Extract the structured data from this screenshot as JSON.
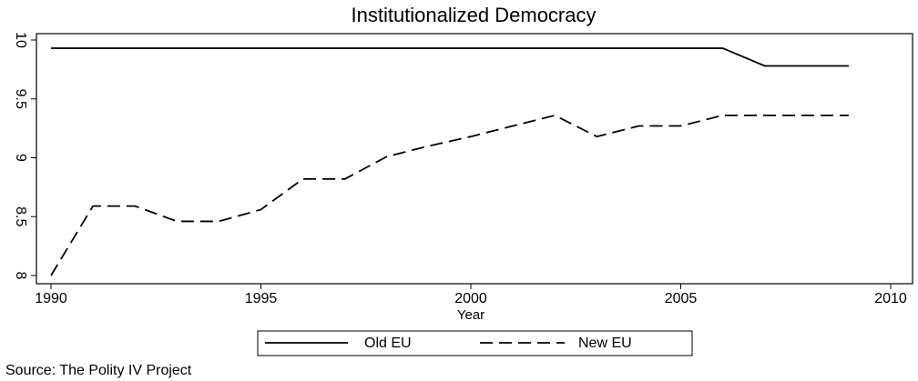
{
  "chart_data": {
    "type": "line",
    "title": "Institutionalized Democracy",
    "x_label": "Year",
    "source": "Source: The Polity IV Project",
    "x": [
      1990,
      1991,
      1992,
      1993,
      1994,
      1995,
      1996,
      1997,
      1998,
      1999,
      2000,
      2001,
      2002,
      2003,
      2004,
      2005,
      2006,
      2007,
      2008,
      2009
    ],
    "series": [
      {
        "name": "Old EU",
        "color": "#000000",
        "dash": "solid",
        "values": [
          9.93,
          9.93,
          9.93,
          9.93,
          9.93,
          9.93,
          9.93,
          9.93,
          9.93,
          9.93,
          9.93,
          9.93,
          9.93,
          9.93,
          9.93,
          9.93,
          9.93,
          9.78,
          9.78,
          9.78
        ]
      },
      {
        "name": "New EU",
        "color": "#000000",
        "dash": "dashed",
        "values": [
          8.0,
          8.59,
          8.59,
          8.46,
          8.46,
          8.56,
          8.82,
          8.82,
          9.01,
          9.1,
          9.18,
          9.27,
          9.36,
          9.18,
          9.27,
          9.27,
          9.36,
          9.36,
          9.36,
          9.36
        ]
      }
    ],
    "xlim": [
      1990,
      2010
    ],
    "xticks": [
      1990,
      1995,
      2000,
      2005,
      2010
    ],
    "ylim": [
      8,
      10
    ],
    "yticks": [
      8,
      8.5,
      9,
      9.5,
      10
    ],
    "grid": false,
    "legend": "bottom"
  }
}
